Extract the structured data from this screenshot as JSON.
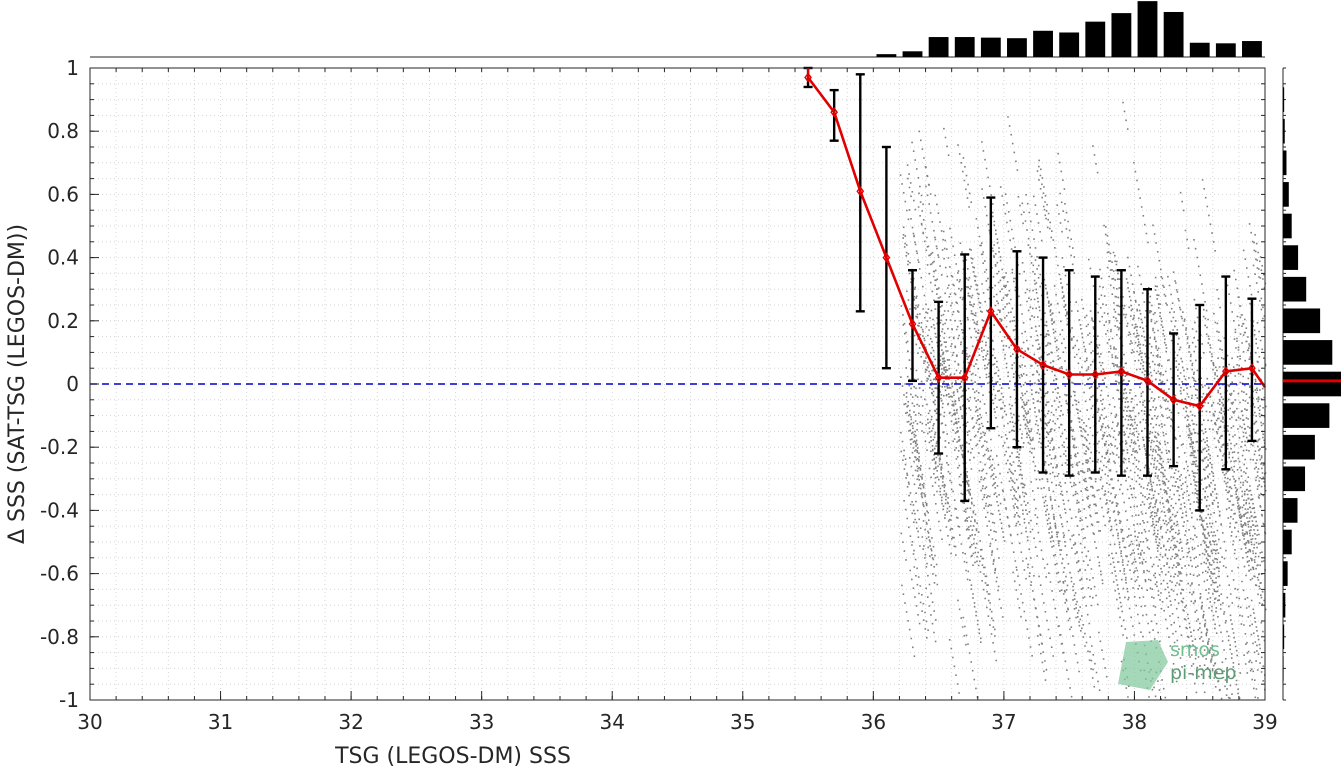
{
  "chart_data": {
    "type": "scatter",
    "xlabel": "TSG (LEGOS-DM) SSS",
    "ylabel": "Δ SSS (SAT-TSG (LEGOS-DM))",
    "xlim": [
      30,
      39
    ],
    "ylim": [
      -1,
      1
    ],
    "xticks": [
      30,
      31,
      32,
      33,
      34,
      35,
      36,
      37,
      38,
      39
    ],
    "yticks": [
      -1,
      -0.8,
      -0.6,
      -0.4,
      -0.2,
      0,
      0.2,
      0.4,
      0.6,
      0.8,
      1
    ],
    "grid": true,
    "reference_line": {
      "y": 0,
      "color": "#0000cc",
      "style": "dashed"
    },
    "binned_mean": {
      "color": "#e00000",
      "x": [
        35.5,
        35.7,
        35.9,
        36.1,
        36.3,
        36.5,
        36.7,
        36.9,
        37.1,
        37.3,
        37.5,
        37.7,
        37.9,
        38.1,
        38.3,
        38.5,
        38.7,
        38.9,
        39.0
      ],
      "y": [
        0.97,
        0.86,
        0.61,
        0.4,
        0.19,
        0.02,
        0.02,
        0.23,
        0.11,
        0.06,
        0.03,
        0.03,
        0.04,
        0.01,
        -0.05,
        -0.07,
        0.04,
        0.05,
        -0.01
      ],
      "err_low": [
        0.94,
        0.77,
        0.23,
        0.05,
        0.01,
        -0.22,
        -0.37,
        -0.14,
        -0.2,
        -0.28,
        -0.29,
        -0.28,
        -0.29,
        -0.29,
        -0.26,
        -0.4,
        -0.27,
        -0.18,
        null
      ],
      "err_high": [
        1.0,
        0.93,
        0.98,
        0.75,
        0.36,
        0.26,
        0.41,
        0.59,
        0.42,
        0.4,
        0.36,
        0.34,
        0.36,
        0.3,
        0.16,
        0.25,
        0.34,
        0.27,
        null
      ]
    },
    "scatter_color": "#808080",
    "top_histogram": {
      "bins_x": [
        36.0,
        36.2,
        36.4,
        36.6,
        36.8,
        37.0,
        37.2,
        37.4,
        37.6,
        37.8,
        38.0,
        38.2,
        38.4,
        38.6,
        38.8
      ],
      "rel_counts": [
        0.05,
        0.1,
        0.35,
        0.35,
        0.34,
        0.33,
        0.46,
        0.43,
        0.62,
        0.77,
        0.98,
        0.79,
        0.25,
        0.24,
        0.28
      ]
    },
    "right_histogram": {
      "bins_y": [
        0.9,
        0.8,
        0.7,
        0.6,
        0.5,
        0.4,
        0.3,
        0.2,
        0.1,
        0.0,
        -0.1,
        -0.2,
        -0.3,
        -0.4,
        -0.5,
        -0.6,
        -0.7,
        -0.8,
        -0.9
      ],
      "rel_counts": [
        0.02,
        0.03,
        0.06,
        0.1,
        0.15,
        0.26,
        0.4,
        0.64,
        0.85,
        1.0,
        0.8,
        0.55,
        0.38,
        0.25,
        0.15,
        0.08,
        0.04,
        0.02,
        0.01
      ],
      "mean_marker_y": 0.01,
      "mean_marker_color": "#e00000"
    }
  },
  "logo": {
    "line1": "smos",
    "line2": "pi-mep"
  }
}
